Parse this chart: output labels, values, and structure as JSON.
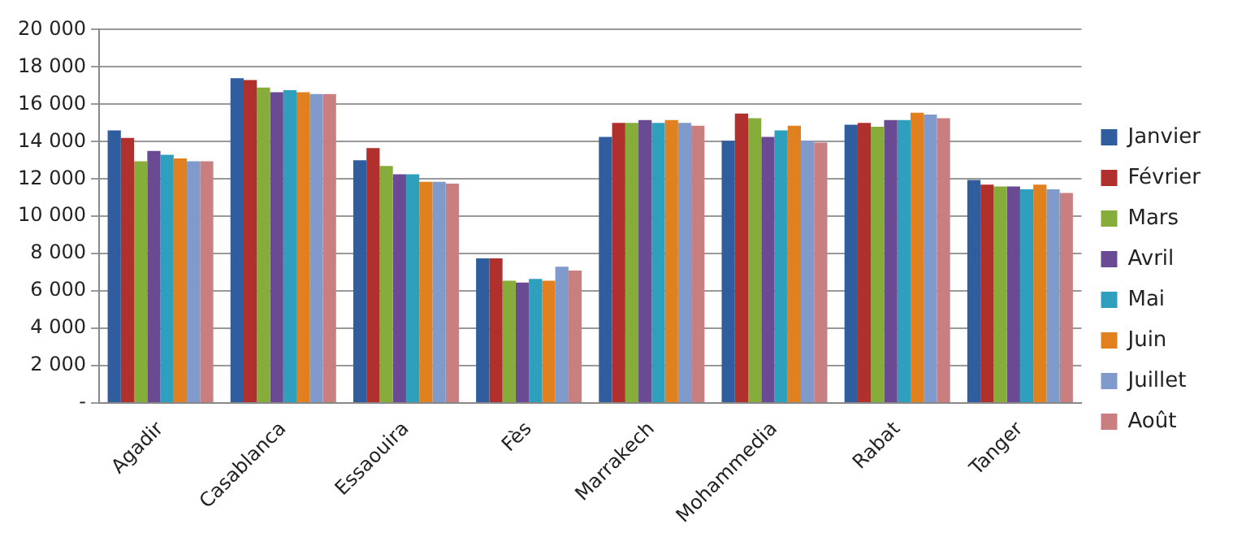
{
  "chart_data": {
    "type": "bar",
    "categories": [
      "Agadir",
      "Casablanca",
      "Essaouira",
      "Fès",
      "Marrakech",
      "Mohammedia",
      "Rabat",
      "Tanger"
    ],
    "series": [
      {
        "name": "Janvier",
        "color": "#2f5d9e",
        "values": [
          14600,
          17400,
          13000,
          7750,
          14250,
          14050,
          14900,
          11950
        ]
      },
      {
        "name": "Février",
        "color": "#b0302e",
        "values": [
          14200,
          17300,
          13650,
          7750,
          15000,
          15500,
          15000,
          11700
        ]
      },
      {
        "name": "Mars",
        "color": "#86ad3a",
        "values": [
          12950,
          16900,
          12700,
          6550,
          15000,
          15250,
          14800,
          11600
        ]
      },
      {
        "name": "Avril",
        "color": "#6b4a94",
        "values": [
          13500,
          16650,
          12250,
          6450,
          15150,
          14250,
          15150,
          11600
        ]
      },
      {
        "name": "Mai",
        "color": "#2ea0bd",
        "values": [
          13300,
          16750,
          12250,
          6650,
          15000,
          14600,
          15150,
          11450
        ]
      },
      {
        "name": "Juin",
        "color": "#e0801f",
        "values": [
          13100,
          16650,
          11850,
          6550,
          15150,
          14850,
          15550,
          11700
        ]
      },
      {
        "name": "Juillet",
        "color": "#7f9acb",
        "values": [
          12950,
          16550,
          11850,
          7300,
          15000,
          14050,
          15450,
          11450
        ]
      },
      {
        "name": "Août",
        "color": "#c97f7f",
        "values": [
          12950,
          16550,
          11750,
          7100,
          14850,
          13950,
          15250,
          11250
        ]
      }
    ],
    "ylim": [
      0,
      20000
    ],
    "yticks": [
      {
        "value": 0,
        "label": "-"
      },
      {
        "value": 2000,
        "label": "2 000"
      },
      {
        "value": 4000,
        "label": "4 000"
      },
      {
        "value": 6000,
        "label": "6 000"
      },
      {
        "value": 8000,
        "label": "8 000"
      },
      {
        "value": 10000,
        "label": "10 000"
      },
      {
        "value": 12000,
        "label": "12 000"
      },
      {
        "value": 14000,
        "label": "14 000"
      },
      {
        "value": 16000,
        "label": "16 000"
      },
      {
        "value": 18000,
        "label": "18 000"
      },
      {
        "value": 20000,
        "label": "20 000"
      }
    ],
    "grid": "y",
    "legend": "right"
  }
}
